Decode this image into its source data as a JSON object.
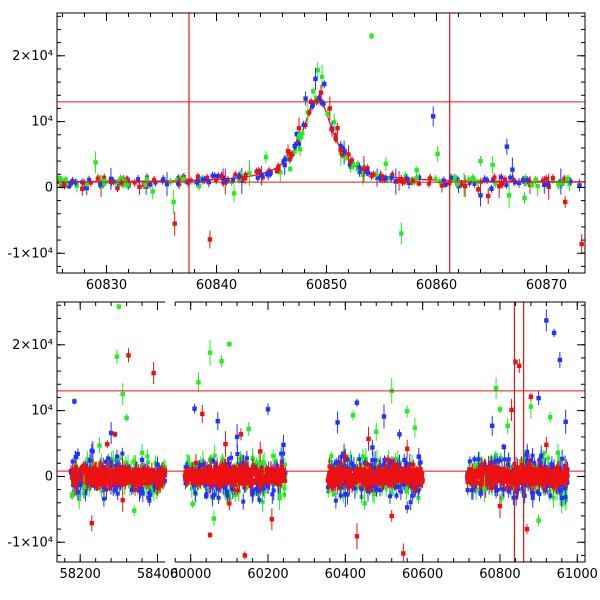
{
  "chart_data": [
    {
      "type": "scatter",
      "title": "",
      "xlabel": "",
      "ylabel": "",
      "xlim": [
        60825.5,
        60873.5
      ],
      "ylim": [
        -13000,
        26500
      ],
      "grid": false,
      "x_ticks": [
        60830,
        60840,
        60850,
        60860,
        60870
      ],
      "x_tick_labels": [
        "60830",
        "60840",
        "60850",
        "60860",
        "60870"
      ],
      "y_ticks": [
        -10000,
        0,
        10000,
        20000
      ],
      "y_tick_labels": [
        "-1×10⁴",
        "0",
        "10⁴",
        "2×10⁴"
      ],
      "hlines": [
        13000,
        800
      ],
      "vlines": [
        60837.5,
        60861.2
      ],
      "model_curve": {
        "type": "lorentzian",
        "x0": 60849.2,
        "amplitude": 12800,
        "baseline": 800,
        "width": 1.7
      },
      "series": [
        {
          "name": "green",
          "color": "#22ee22",
          "points": [
            [
              60826.2,
              600
            ],
            [
              60827.3,
              300
            ],
            [
              60829.0,
              3800
            ],
            [
              60831.5,
              400
            ],
            [
              60834.2,
              -600
            ],
            [
              60836.1,
              -2200
            ],
            [
              60838.4,
              200
            ],
            [
              60841.6,
              -900
            ],
            [
              60843.0,
              2200
            ],
            [
              60844.5,
              4600
            ],
            [
              60845.8,
              2300
            ],
            [
              60846.7,
              2800
            ],
            [
              60847.6,
              5800
            ],
            [
              60848.3,
              11400
            ],
            [
              60848.8,
              14600
            ],
            [
              60849.2,
              17800
            ],
            [
              60849.6,
              16800
            ],
            [
              60850.1,
              11200
            ],
            [
              60850.7,
              9900
            ],
            [
              60851.3,
              5200
            ],
            [
              60852.2,
              3100
            ],
            [
              60853.3,
              1900
            ],
            [
              60854.1,
              23000
            ],
            [
              60855.4,
              3600
            ],
            [
              60856.8,
              -7000
            ],
            [
              60858.2,
              2600
            ],
            [
              60860.1,
              5100
            ],
            [
              60862.5,
              400
            ],
            [
              60864.0,
              4000
            ],
            [
              60865.1,
              3400
            ],
            [
              60866.6,
              -1200
            ],
            [
              60868.0,
              -1600
            ],
            [
              60869.2,
              200
            ],
            [
              60870.6,
              1000
            ],
            [
              60872.1,
              500
            ]
          ]
        },
        {
          "name": "blue",
          "color": "#2233ff",
          "points": [
            [
              60826.6,
              200
            ],
            [
              60828.2,
              -100
            ],
            [
              60830.4,
              1300
            ],
            [
              60832.0,
              300
            ],
            [
              60833.6,
              100
            ],
            [
              60835.5,
              500
            ],
            [
              60839.3,
              800
            ],
            [
              60840.6,
              1500
            ],
            [
              60842.3,
              1000
            ],
            [
              60844.7,
              2000
            ],
            [
              60846.2,
              3400
            ],
            [
              60847.3,
              8100
            ],
            [
              60848.1,
              13500
            ],
            [
              60849.0,
              16500
            ],
            [
              60849.8,
              15700
            ],
            [
              60850.5,
              8900
            ],
            [
              60851.6,
              5300
            ],
            [
              60853.0,
              2400
            ],
            [
              60854.6,
              1500
            ],
            [
              60856.3,
              900
            ],
            [
              60857.5,
              700
            ],
            [
              60859.7,
              10800
            ],
            [
              60860.8,
              400
            ],
            [
              60862.0,
              200
            ],
            [
              60864.0,
              -1200
            ],
            [
              60865.0,
              -200
            ],
            [
              60866.4,
              6200
            ],
            [
              60866.9,
              2700
            ],
            [
              60867.5,
              700
            ],
            [
              60869.8,
              400
            ],
            [
              60871.3,
              900
            ],
            [
              60873.0,
              300
            ]
          ]
        },
        {
          "name": "red",
          "color": "#ee1111",
          "points": [
            [
              60825.9,
              300
            ],
            [
              60827.8,
              -200
            ],
            [
              60829.5,
              200
            ],
            [
              60831.0,
              -100
            ],
            [
              60833.0,
              100
            ],
            [
              60836.2,
              -5500
            ],
            [
              60836.6,
              500
            ],
            [
              60839.4,
              -7900
            ],
            [
              60840.8,
              900
            ],
            [
              60842.6,
              1400
            ],
            [
              60844.1,
              1800
            ],
            [
              60845.5,
              2500
            ],
            [
              60846.5,
              5500
            ],
            [
              60847.5,
              9000
            ],
            [
              60848.6,
              13000
            ],
            [
              60849.5,
              14400
            ],
            [
              60850.3,
              12000
            ],
            [
              60851.0,
              9000
            ],
            [
              60852.0,
              5000
            ],
            [
              60853.4,
              2800
            ],
            [
              60854.9,
              1700
            ],
            [
              60856.6,
              1000
            ],
            [
              60858.4,
              600
            ],
            [
              60860.5,
              300
            ],
            [
              60862.6,
              200
            ],
            [
              60863.8,
              -300
            ],
            [
              60864.7,
              -1300
            ],
            [
              60865.7,
              200
            ],
            [
              60867.0,
              1100
            ],
            [
              60868.5,
              400
            ],
            [
              60870.2,
              100
            ],
            [
              60871.7,
              -2200
            ],
            [
              60873.2,
              -8600
            ]
          ]
        }
      ]
    },
    {
      "type": "scatter",
      "title": "",
      "xlabel": "",
      "ylabel": "",
      "xlim": [
        58140,
        61020
      ],
      "ylim": [
        -13000,
        26500
      ],
      "grid": false,
      "x_ticks": [
        58200,
        58400,
        60000,
        60200,
        60400,
        60600,
        60800,
        61000
      ],
      "x_tick_labels": [
        "58200",
        "58400",
        "60000",
        "60200",
        "60400",
        "60600",
        "60800",
        "61000"
      ],
      "y_ticks": [
        -10000,
        0,
        10000,
        20000
      ],
      "y_tick_labels": [
        "-1×10⁴",
        "0",
        "10⁴",
        "2×10⁴"
      ],
      "x_break": {
        "left_end": 58420,
        "right_start": 59960
      },
      "hlines": [
        13000,
        800
      ],
      "vlines": [
        60837.5,
        60861.2
      ],
      "clusters": [
        [
          58175,
          58420
        ],
        [
          59985,
          60245
        ],
        [
          60355,
          60600
        ],
        [
          60715,
          60975
        ]
      ],
      "series": [
        {
          "name": "green",
          "color": "#22ee22",
          "points": [
            [
              58300,
              25800
            ],
            [
              58295,
              18200
            ],
            [
              58310,
              12500
            ],
            [
              58320,
              8900
            ],
            [
              58250,
              4700
            ],
            [
              58210,
              -1600
            ],
            [
              58340,
              -5200
            ],
            [
              58360,
              3600
            ],
            [
              60050,
              18800
            ],
            [
              60080,
              17500
            ],
            [
              60020,
              14300
            ],
            [
              60100,
              20100
            ],
            [
              60150,
              7200
            ],
            [
              60190,
              2000
            ],
            [
              60005,
              -4200
            ],
            [
              60060,
              -6400
            ],
            [
              60230,
              -3300
            ],
            [
              60420,
              9300
            ],
            [
              60480,
              6800
            ],
            [
              60520,
              13000
            ],
            [
              60560,
              9900
            ],
            [
              60580,
              7400
            ],
            [
              60370,
              -2700
            ],
            [
              60450,
              -4100
            ],
            [
              60790,
              13400
            ],
            [
              60800,
              10200
            ],
            [
              60820,
              7700
            ],
            [
              60880,
              10600
            ],
            [
              60930,
              9000
            ],
            [
              60950,
              3600
            ],
            [
              60760,
              -1900
            ],
            [
              60900,
              -6700
            ],
            [
              60960,
              -4100
            ]
          ]
        },
        {
          "name": "blue",
          "color": "#2233ff",
          "points": [
            [
              58185,
              11400
            ],
            [
              58230,
              3900
            ],
            [
              58280,
              6600
            ],
            [
              58360,
              2500
            ],
            [
              58400,
              1800
            ],
            [
              58200,
              -1300
            ],
            [
              60010,
              10300
            ],
            [
              60070,
              8400
            ],
            [
              60120,
              6000
            ],
            [
              60200,
              10200
            ],
            [
              60240,
              4800
            ],
            [
              60040,
              -3000
            ],
            [
              60170,
              -1900
            ],
            [
              60380,
              8200
            ],
            [
              60430,
              11200
            ],
            [
              60470,
              4400
            ],
            [
              60500,
              9100
            ],
            [
              60540,
              6400
            ],
            [
              60590,
              3000
            ],
            [
              60400,
              -2700
            ],
            [
              60560,
              -4700
            ],
            [
              60780,
              7700
            ],
            [
              60810,
              4500
            ],
            [
              60900,
              11900
            ],
            [
              60920,
              23700
            ],
            [
              60940,
              21800
            ],
            [
              60955,
              17700
            ],
            [
              60970,
              8300
            ],
            [
              60750,
              -2600
            ],
            [
              60960,
              -3300
            ]
          ]
        },
        {
          "name": "red",
          "color": "#ee1111",
          "points": [
            [
              58290,
              6400
            ],
            [
              58325,
              18400
            ],
            [
              58390,
              15700
            ],
            [
              58270,
              4900
            ],
            [
              58230,
              -7100
            ],
            [
              58310,
              -3600
            ],
            [
              58350,
              -1300
            ],
            [
              60030,
              9500
            ],
            [
              60090,
              4900
            ],
            [
              60130,
              6400
            ],
            [
              60180,
              3800
            ],
            [
              60050,
              -8900
            ],
            [
              60100,
              -4100
            ],
            [
              60210,
              -6500
            ],
            [
              60140,
              -12000
            ],
            [
              60400,
              3000
            ],
            [
              60460,
              5700
            ],
            [
              60510,
              2500
            ],
            [
              60560,
              4200
            ],
            [
              60430,
              -9100
            ],
            [
              60520,
              -6000
            ],
            [
              60550,
              -11700
            ],
            [
              60840,
              17400
            ],
            [
              60850,
              16800
            ],
            [
              60830,
              10100
            ],
            [
              60880,
              12100
            ],
            [
              60920,
              4800
            ],
            [
              60800,
              -4500
            ],
            [
              60870,
              -8000
            ]
          ]
        }
      ]
    }
  ]
}
